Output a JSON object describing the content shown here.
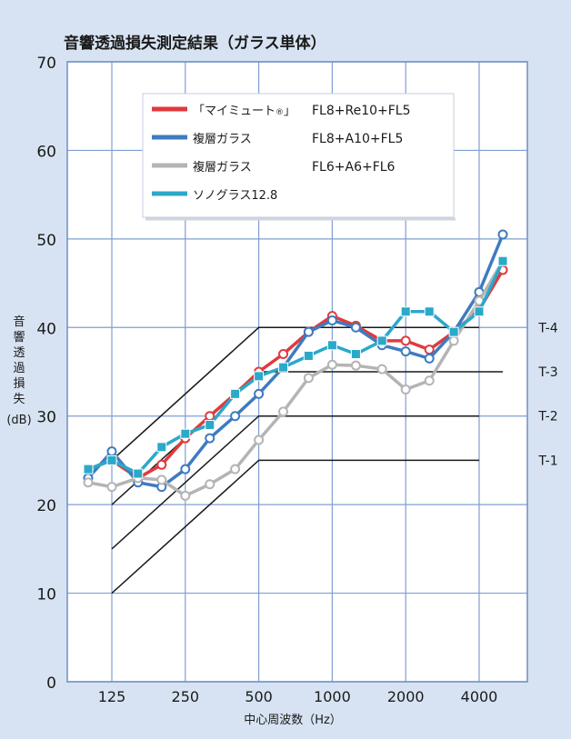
{
  "chart_data": {
    "type": "line",
    "title": "音響透過損失測定結果（ガラス単体）",
    "ylabel_lines": [
      "音",
      "響",
      "透",
      "過",
      "損",
      "失"
    ],
    "ylabel_unit": "(dB)",
    "xlabel": "中心周波数（Hz）",
    "ylim": [
      0,
      70
    ],
    "y_ticks": [
      0,
      10,
      20,
      30,
      40,
      50,
      60,
      70
    ],
    "x_scale": "log (1/3 octave bands)",
    "x_tick_labels": [
      "125",
      "250",
      "500",
      "1000",
      "2000",
      "4000"
    ],
    "x": [
      100,
      125,
      160,
      200,
      250,
      315,
      400,
      500,
      630,
      800,
      1000,
      1250,
      1600,
      2000,
      2500,
      3150,
      4000,
      5000
    ],
    "legend_position": "top-center",
    "series": [
      {
        "name": "「マイミュート",
        "name_mark": "®",
        "name_tail": "」",
        "spec": "FL8+Re10+FL5",
        "color": "#e03a3e",
        "marker": "circle",
        "values": [
          24,
          25,
          23,
          24.5,
          27.5,
          30,
          32.5,
          35,
          37,
          39.5,
          41.3,
          40.2,
          38.5,
          38.5,
          37.5,
          39.5,
          42,
          46.5
        ]
      },
      {
        "name": "複層ガラス",
        "spec": "FL8+A10+FL5",
        "color": "#3e7bc0",
        "marker": "circle",
        "values": [
          23,
          26,
          22.5,
          22,
          24,
          27.5,
          30,
          32.5,
          35.5,
          39.5,
          40.8,
          40,
          38,
          37.3,
          36.5,
          39.5,
          44,
          50.5
        ]
      },
      {
        "name": "複層ガラス",
        "spec": "FL6+A6+FL6",
        "color": "#b4b4b4",
        "marker": "circle",
        "values": [
          22.5,
          22,
          23,
          22.8,
          21,
          22.3,
          24,
          27.3,
          30.5,
          34.3,
          35.8,
          35.7,
          35.3,
          33,
          34,
          38.5,
          43,
          47.5
        ]
      },
      {
        "name": "ソノグラス12.8",
        "spec": "",
        "color": "#2aa9c9",
        "marker": "square",
        "values": [
          24,
          25,
          23.5,
          26.5,
          28,
          29,
          32.5,
          34.5,
          35.5,
          36.8,
          38,
          37,
          38.5,
          41.8,
          41.8,
          39.5,
          41.8,
          47.5
        ]
      }
    ],
    "reference_curves": [
      {
        "name": "T-4",
        "points": [
          [
            125,
            25
          ],
          [
            500,
            40
          ],
          [
            4000,
            40
          ]
        ]
      },
      {
        "name": "T-3",
        "points": [
          [
            125,
            20
          ],
          [
            500,
            35
          ],
          [
            5000,
            35
          ]
        ]
      },
      {
        "name": "T-2",
        "points": [
          [
            125,
            15
          ],
          [
            500,
            30
          ],
          [
            4000,
            30
          ]
        ]
      },
      {
        "name": "T-1",
        "points": [
          [
            125,
            10
          ],
          [
            500,
            25
          ],
          [
            4000,
            25
          ]
        ]
      }
    ],
    "grid": true
  }
}
